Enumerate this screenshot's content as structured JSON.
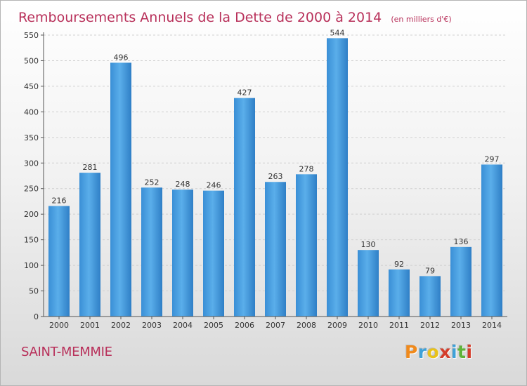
{
  "page": {
    "city": "SAINT-MEMMIE"
  },
  "logo": {
    "letters": [
      "P",
      "r",
      "o",
      "x",
      "i",
      "t",
      "i"
    ],
    "colors": [
      "#f08a1c",
      "#3fa1d8",
      "#e8c21a",
      "#d43d2b",
      "#3fa1d8",
      "#5fb33a",
      "#d43d2b"
    ]
  },
  "chart_data": {
    "type": "bar",
    "title": "Remboursements Annuels de la Dette de 2000 à 2014",
    "subtitle": "(en milliers d'€)",
    "categories": [
      "2000",
      "2001",
      "2002",
      "2003",
      "2004",
      "2005",
      "2006",
      "2007",
      "2008",
      "2009",
      "2010",
      "2011",
      "2012",
      "2013",
      "2014"
    ],
    "values": [
      216,
      281,
      496,
      252,
      248,
      246,
      427,
      263,
      278,
      544,
      130,
      92,
      79,
      136,
      297
    ],
    "yticks": [
      0,
      50,
      100,
      150,
      200,
      250,
      300,
      350,
      400,
      450,
      500,
      550
    ],
    "ylim": [
      0,
      550
    ],
    "grid": true,
    "bar_color": "#4a9de0"
  }
}
